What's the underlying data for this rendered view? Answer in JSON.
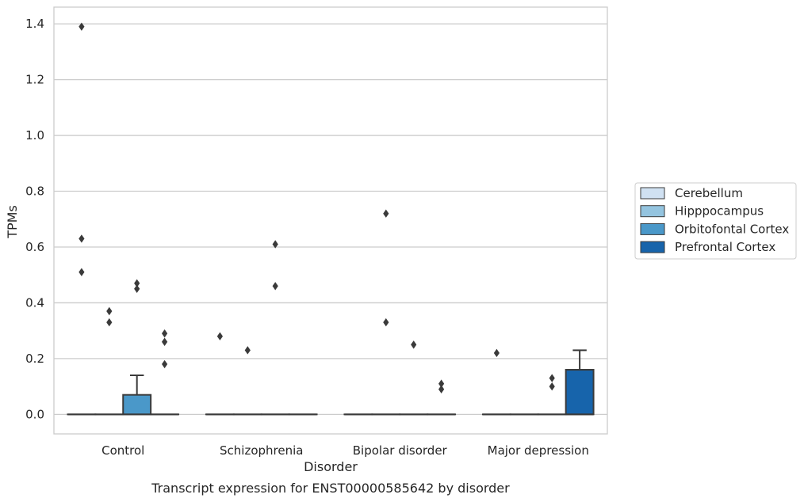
{
  "chart_data": {
    "type": "box",
    "caption": "Transcript expression for ENST00000585642 by disorder",
    "xlabel": "Disorder",
    "ylabel": "TPMs",
    "ylim": [
      -0.07,
      1.46
    ],
    "yticks": [
      0.0,
      0.2,
      0.4,
      0.6,
      0.8,
      1.0,
      1.2,
      1.4
    ],
    "ytick_labels": [
      "0.0",
      "0.2",
      "0.4",
      "0.6",
      "0.8",
      "1.0",
      "1.2",
      "1.4"
    ],
    "grid": "horizontal",
    "legend_placement": "center-right outside plot",
    "categories": [
      "Control",
      "Schizophrenia",
      "Bipolar disorder",
      "Major depression"
    ],
    "series": [
      {
        "name": "Cerebellum",
        "color": "#d0e1f2",
        "boxes": [
          {
            "q1": 0,
            "median": 0,
            "q3": 0,
            "whisker_low": 0,
            "whisker_high": 0,
            "outliers": [
              1.39,
              0.63,
              0.51
            ]
          },
          {
            "q1": 0,
            "median": 0,
            "q3": 0,
            "whisker_low": 0,
            "whisker_high": 0,
            "outliers": [
              0.28
            ]
          },
          {
            "q1": 0,
            "median": 0,
            "q3": 0,
            "whisker_low": 0,
            "whisker_high": 0,
            "outliers": []
          },
          {
            "q1": 0,
            "median": 0,
            "q3": 0,
            "whisker_low": 0,
            "whisker_high": 0,
            "outliers": [
              0.22
            ]
          }
        ]
      },
      {
        "name": "Hipppocampus",
        "color": "#94c4df",
        "boxes": [
          {
            "q1": 0,
            "median": 0,
            "q3": 0,
            "whisker_low": 0,
            "whisker_high": 0,
            "outliers": [
              0.37,
              0.33
            ]
          },
          {
            "q1": 0,
            "median": 0,
            "q3": 0,
            "whisker_low": 0,
            "whisker_high": 0,
            "outliers": [
              0.23
            ]
          },
          {
            "q1": 0,
            "median": 0,
            "q3": 0,
            "whisker_low": 0,
            "whisker_high": 0,
            "outliers": [
              0.72,
              0.33
            ]
          },
          {
            "q1": 0,
            "median": 0,
            "q3": 0,
            "whisker_low": 0,
            "whisker_high": 0,
            "outliers": []
          }
        ]
      },
      {
        "name": "Orbitofontal Cortex",
        "color": "#4a98c9",
        "boxes": [
          {
            "q1": 0,
            "median": 0,
            "q3": 0.07,
            "whisker_low": 0,
            "whisker_high": 0.14,
            "outliers": [
              0.47,
              0.45
            ]
          },
          {
            "q1": 0,
            "median": 0,
            "q3": 0,
            "whisker_low": 0,
            "whisker_high": 0,
            "outliers": [
              0.61,
              0.46
            ]
          },
          {
            "q1": 0,
            "median": 0,
            "q3": 0,
            "whisker_low": 0,
            "whisker_high": 0,
            "outliers": [
              0.25
            ]
          },
          {
            "q1": 0,
            "median": 0,
            "q3": 0,
            "whisker_low": 0,
            "whisker_high": 0,
            "outliers": [
              0.13,
              0.1
            ]
          }
        ]
      },
      {
        "name": "Prefrontal Cortex",
        "color": "#1764ab",
        "boxes": [
          {
            "q1": 0,
            "median": 0,
            "q3": 0,
            "whisker_low": 0,
            "whisker_high": 0,
            "outliers": [
              0.29,
              0.26,
              0.18
            ]
          },
          {
            "q1": 0,
            "median": 0,
            "q3": 0,
            "whisker_low": 0,
            "whisker_high": 0,
            "outliers": []
          },
          {
            "q1": 0,
            "median": 0,
            "q3": 0,
            "whisker_low": 0,
            "whisker_high": 0,
            "outliers": [
              0.11,
              0.09
            ]
          },
          {
            "q1": 0,
            "median": 0,
            "q3": 0.16,
            "whisker_low": 0,
            "whisker_high": 0.23,
            "outliers": []
          }
        ]
      }
    ]
  },
  "colors": {
    "grid": "#cccccc",
    "frame": "#cccccc",
    "box_edge": "#3a3a3a",
    "outlier": "#3a3a3a"
  }
}
